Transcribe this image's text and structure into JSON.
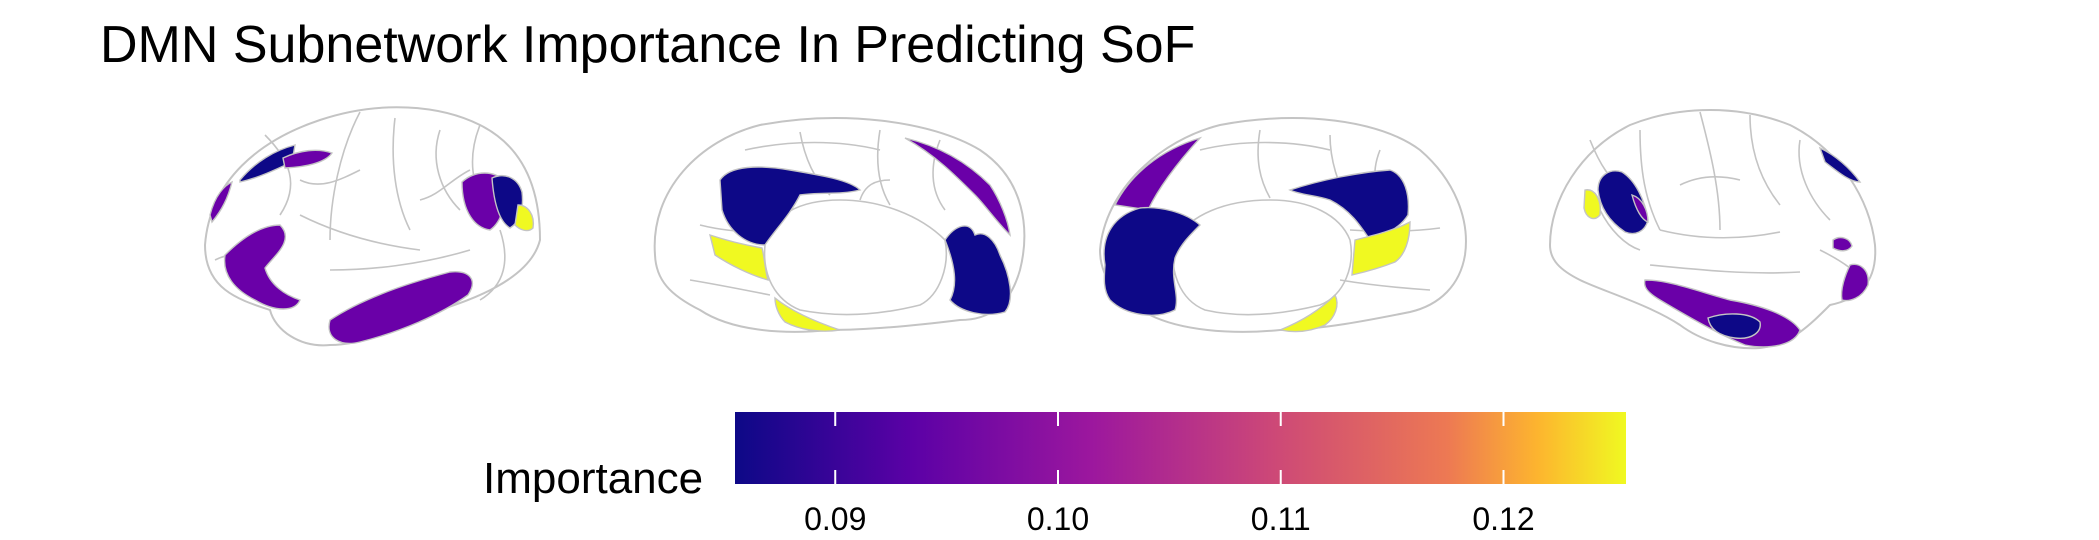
{
  "title": "DMN Subnetwork Importance In Predicting SoF",
  "legend": {
    "title": "Importance",
    "ticks": [
      {
        "value": 0.09,
        "label": "0.09"
      },
      {
        "value": 0.1,
        "label": "0.10"
      },
      {
        "value": 0.11,
        "label": "0.11"
      },
      {
        "value": 0.12,
        "label": "0.12"
      }
    ],
    "range": [
      0.0855,
      0.1255
    ],
    "colormap": "plasma",
    "colors": {
      "low": "#0d0887",
      "mid_low": "#6a00a8",
      "mid": "#b12a90",
      "mid_high": "#e16462",
      "high": "#fca636",
      "top": "#f0f921"
    }
  },
  "region_colors": {
    "dark_blue": "#0d0887",
    "purple": "#6a00a8",
    "yellow": "#f0f921"
  },
  "views": [
    "left-lateral",
    "left-medial",
    "right-medial",
    "right-lateral"
  ]
}
